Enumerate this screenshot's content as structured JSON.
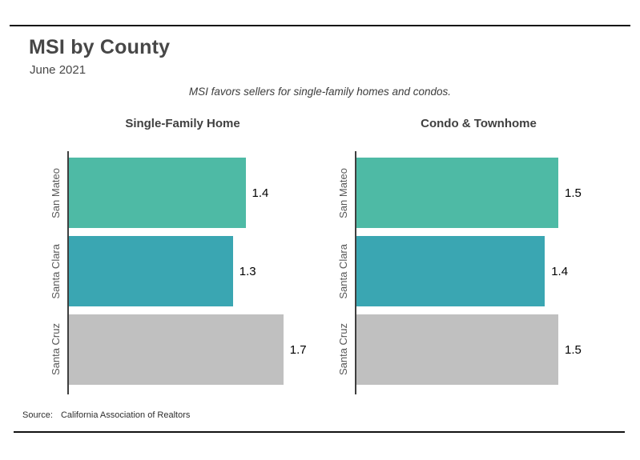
{
  "page": {
    "title": "MSI by County",
    "subtitle": "June 2021",
    "note": "MSI favors sellers for single-family homes and condos.",
    "source_label": "Source:",
    "source_text": "California Association of Realtors"
  },
  "colors": {
    "san_mateo_bar": "#4ebaa5",
    "santa_clara_bar": "#3aa6b2",
    "santa_cruz_bar": "#c0c0c0",
    "axis": "#3f3f3f",
    "category_label": "#595959",
    "value_label": "#000000",
    "rule": "#111111"
  },
  "chart_data": [
    {
      "type": "bar",
      "orientation": "horizontal",
      "title": "Single-Family Home",
      "categories": [
        "San Mateo",
        "Santa Clara",
        "Santa Cruz"
      ],
      "values": [
        1.4,
        1.3,
        1.7
      ],
      "data_labels": [
        "1.4",
        "1.3",
        "1.7"
      ],
      "bar_colors": [
        "#4ebaa5",
        "#3aa6b2",
        "#c0c0c0"
      ],
      "xlim": [
        0,
        2
      ],
      "grid": false,
      "legend": false
    },
    {
      "type": "bar",
      "orientation": "horizontal",
      "title": "Condo & Townhome",
      "categories": [
        "San Mateo",
        "Santa Clara",
        "Santa Cruz"
      ],
      "values": [
        1.5,
        1.4,
        1.5
      ],
      "data_labels": [
        "1.5",
        "1.4",
        "1.5"
      ],
      "bar_colors": [
        "#4ebaa5",
        "#3aa6b2",
        "#c0c0c0"
      ],
      "xlim": [
        0,
        2
      ],
      "grid": false,
      "legend": false
    }
  ]
}
